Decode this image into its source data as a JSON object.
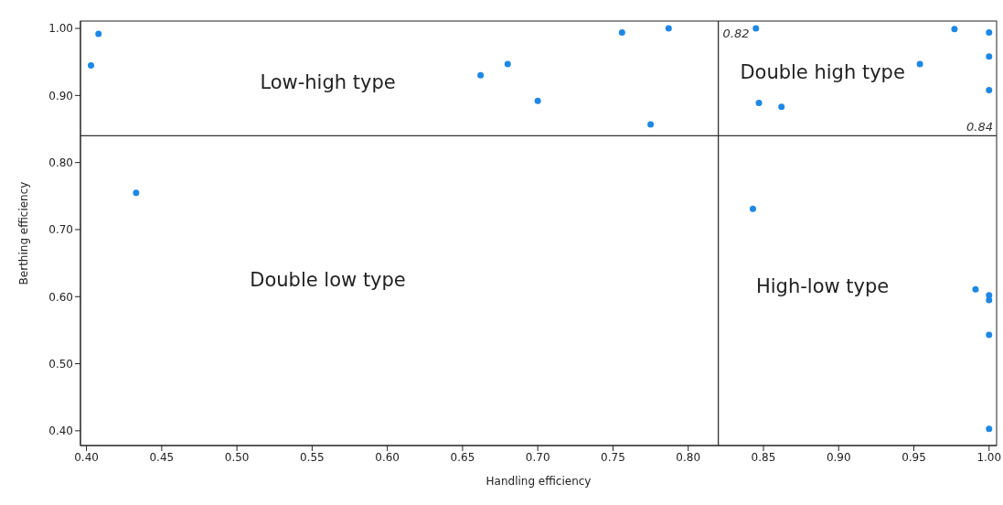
{
  "chart_data": {
    "type": "scatter",
    "xlabel": "Handling efficiency",
    "ylabel": "Berthing efficiency",
    "x": [
      0.403,
      0.408,
      0.433,
      0.662,
      0.68,
      0.7,
      0.756,
      0.775,
      0.787,
      0.845,
      0.847,
      0.862,
      0.954,
      0.977,
      1.0,
      1.0,
      1.0,
      0.843,
      0.991,
      1.0,
      1.0,
      1.0,
      1.0
    ],
    "series": [
      {
        "color": "#1e88e5",
        "values": [
          0.945,
          0.992,
          0.755,
          0.93,
          0.947,
          0.892,
          0.994,
          0.857,
          1.0,
          1.0,
          0.889,
          0.883,
          0.947,
          0.999,
          0.994,
          0.958,
          0.908,
          0.731,
          0.611,
          0.602,
          0.595,
          0.543,
          0.403
        ]
      }
    ],
    "xlim": [
      0.396,
      1.005
    ],
    "xticks": [
      {
        "value": 0.4,
        "label": "0.40"
      },
      {
        "value": 0.45,
        "label": "0.45"
      },
      {
        "value": 0.5,
        "label": "0.50"
      },
      {
        "value": 0.55,
        "label": "0.55"
      },
      {
        "value": 0.6,
        "label": "0.60"
      },
      {
        "value": 0.65,
        "label": "0.65"
      },
      {
        "value": 0.7,
        "label": "0.70"
      },
      {
        "value": 0.75,
        "label": "0.75"
      },
      {
        "value": 0.8,
        "label": "0.80"
      },
      {
        "value": 0.85,
        "label": "0.85"
      },
      {
        "value": 0.9,
        "label": "0.90"
      },
      {
        "value": 0.95,
        "label": "0.95"
      },
      {
        "value": 1.0,
        "label": "1.00"
      }
    ],
    "ylim": [
      0.378,
      1.011
    ],
    "yticks": [
      {
        "value": 0.4,
        "label": "0.40"
      },
      {
        "value": 0.5,
        "label": "0.50"
      },
      {
        "value": 0.6,
        "label": "0.60"
      },
      {
        "value": 0.7,
        "label": "0.70"
      },
      {
        "value": 0.8,
        "label": "0.80"
      },
      {
        "value": 0.9,
        "label": "0.90"
      },
      {
        "value": 1.0,
        "label": "1.00"
      }
    ],
    "ref_lines": [
      {
        "axis": "x",
        "value": 0.82,
        "label": "0.82",
        "color": "#333333"
      },
      {
        "axis": "y",
        "value": 0.84,
        "label": "0.84",
        "color": "#333333"
      }
    ],
    "annotations": [
      "Low-high type",
      "Double high type",
      "Double low type",
      "High-low type"
    ],
    "marker": "circle",
    "grid": false,
    "legend": false
  }
}
